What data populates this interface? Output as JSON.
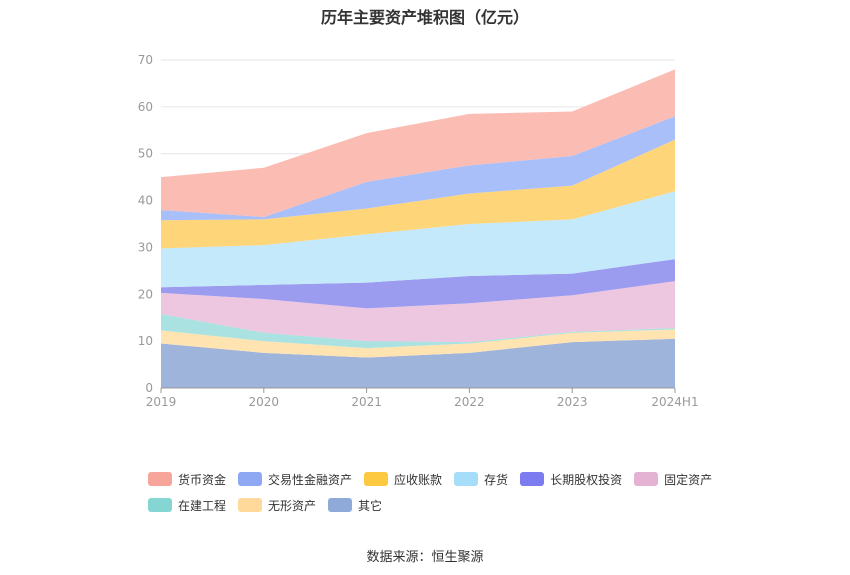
{
  "chart_data": {
    "type": "area",
    "stacked": true,
    "title": "历年主要资产堆积图（亿元）",
    "source": "数据来源：恒生聚源",
    "categories": [
      "2019",
      "2020",
      "2021",
      "2022",
      "2023",
      "2024H1"
    ],
    "y_ticks": [
      "0",
      "10",
      "20",
      "30",
      "40",
      "50",
      "60",
      "70"
    ],
    "ylim": [
      0,
      70
    ],
    "grid": true,
    "legend_position": "bottom",
    "series": [
      {
        "name": "其它",
        "color": "#9fb4db",
        "values": [
          9.5,
          7.5,
          6.5,
          7.5,
          9.8,
          10.5
        ]
      },
      {
        "name": "无形资产",
        "color": "#ffe4b2",
        "values": [
          2.8,
          2.5,
          2.0,
          2.0,
          2.0,
          2.0
        ]
      },
      {
        "name": "在建工程",
        "color": "#a9e2e0",
        "values": [
          3.5,
          1.8,
          1.5,
          0.3,
          0.2,
          0.3
        ]
      },
      {
        "name": "固定资产",
        "color": "#edc7e0",
        "values": [
          4.5,
          7.2,
          7.0,
          8.3,
          7.8,
          10.0
        ]
      },
      {
        "name": "长期股权投资",
        "color": "#9b9bf0",
        "values": [
          1.2,
          3.0,
          5.5,
          5.8,
          4.6,
          4.7
        ]
      },
      {
        "name": "存货",
        "color": "#c4e9fa",
        "values": [
          8.3,
          8.5,
          10.3,
          11.1,
          11.6,
          14.5
        ]
      },
      {
        "name": "应收账款",
        "color": "#ffd57a",
        "values": [
          6.0,
          5.5,
          5.5,
          6.5,
          7.2,
          11.0
        ]
      },
      {
        "name": "交易性金融资产",
        "color": "#a9bff9",
        "values": [
          2.2,
          0.5,
          5.7,
          6.0,
          6.3,
          5.0
        ]
      },
      {
        "name": "货币资金",
        "color": "#fbbcb4",
        "values": [
          7.0,
          10.5,
          10.4,
          11.0,
          9.5,
          10.0
        ]
      }
    ]
  },
  "legend_order": [
    8,
    7,
    6,
    5,
    4,
    3,
    2,
    1,
    0
  ],
  "legend_colors": [
    "#f7a59a",
    "#8fa8f4",
    "#fcc940",
    "#a6ddf8",
    "#7c7cf0",
    "#e4b3d4",
    "#85d6d2",
    "#ffd99a",
    "#8faad8"
  ]
}
